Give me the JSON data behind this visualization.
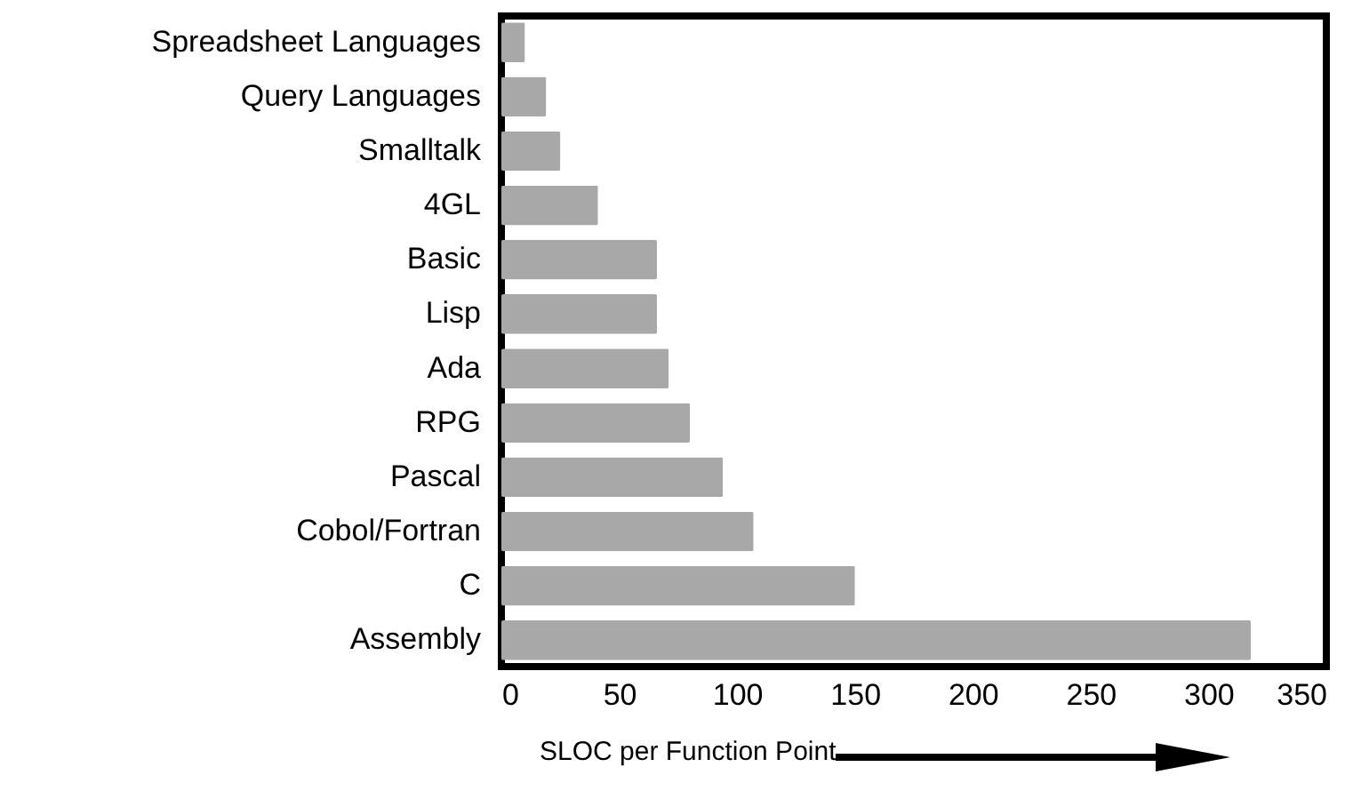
{
  "chart_data": {
    "type": "bar",
    "orientation": "horizontal",
    "xlabel": "SLOC per Function Point",
    "categories": [
      "Spreadsheet Languages",
      "Query Languages",
      "Smalltalk",
      "4GL",
      "Basic",
      "Lisp",
      "Ada",
      "RPG",
      "Pascal",
      "Cobol/Fortran",
      "C",
      "Assembly"
    ],
    "values": [
      10,
      19,
      25,
      41,
      66,
      66,
      71,
      80,
      94,
      107,
      150,
      318
    ],
    "color": "#a8a8a8",
    "xlim": [
      0,
      350
    ],
    "xticks": [
      0,
      50,
      100,
      150,
      200,
      250,
      300,
      350
    ],
    "grid": false
  }
}
